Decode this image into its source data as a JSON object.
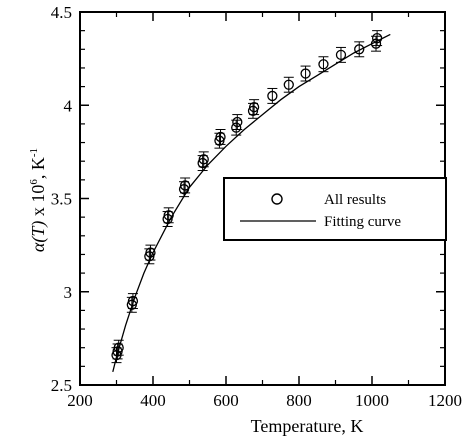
{
  "chart_data": {
    "type": "scatter",
    "title": "",
    "xlabel": "Temperature, K",
    "ylabel": {
      "symbol": "α",
      "var": "(T)",
      "times": " x 10",
      "exp": "6",
      "unit": ", K",
      "unit_exp": "-1"
    },
    "xlim": [
      200,
      1200
    ],
    "ylim": [
      2.5,
      4.5
    ],
    "xticks": [
      "200",
      "400",
      "600",
      "800",
      "1000",
      "1200"
    ],
    "yticks": [
      "2.5",
      "3",
      "3.5",
      "4",
      "4.5"
    ],
    "grid": false,
    "legend": {
      "placement": "center-right",
      "entries": [
        "All results",
        "Fitting curve"
      ]
    },
    "series": [
      {
        "name": "All results",
        "marker": "open-circle",
        "x": [
          300,
          303,
          306,
          342,
          345,
          390,
          393,
          440,
          443,
          485,
          488,
          536,
          539,
          582,
          585,
          628,
          631,
          674,
          677,
          727,
          772,
          818,
          867,
          915,
          965,
          1011,
          1014
        ],
        "y": [
          2.66,
          2.68,
          2.7,
          2.93,
          2.95,
          3.19,
          3.21,
          3.39,
          3.41,
          3.55,
          3.57,
          3.69,
          3.71,
          3.81,
          3.83,
          3.88,
          3.91,
          3.97,
          3.99,
          4.05,
          4.11,
          4.17,
          4.22,
          4.27,
          4.3,
          4.33,
          4.36
        ],
        "error": [
          0.04,
          0.04,
          0.04,
          0.04,
          0.04,
          0.04,
          0.04,
          0.04,
          0.04,
          0.04,
          0.04,
          0.04,
          0.04,
          0.04,
          0.04,
          0.04,
          0.04,
          0.04,
          0.04,
          0.04,
          0.04,
          0.04,
          0.04,
          0.04,
          0.04,
          0.04,
          0.04
        ]
      },
      {
        "name": "Fitting curve",
        "type": "line",
        "x": [
          290,
          300,
          325,
          350,
          375,
          400,
          450,
          500,
          550,
          600,
          650,
          700,
          750,
          800,
          850,
          900,
          950,
          1000,
          1050
        ],
        "y": [
          2.57,
          2.65,
          2.82,
          2.97,
          3.1,
          3.21,
          3.4,
          3.56,
          3.68,
          3.78,
          3.87,
          3.95,
          4.03,
          4.1,
          4.16,
          4.22,
          4.28,
          4.33,
          4.38
        ]
      }
    ]
  }
}
